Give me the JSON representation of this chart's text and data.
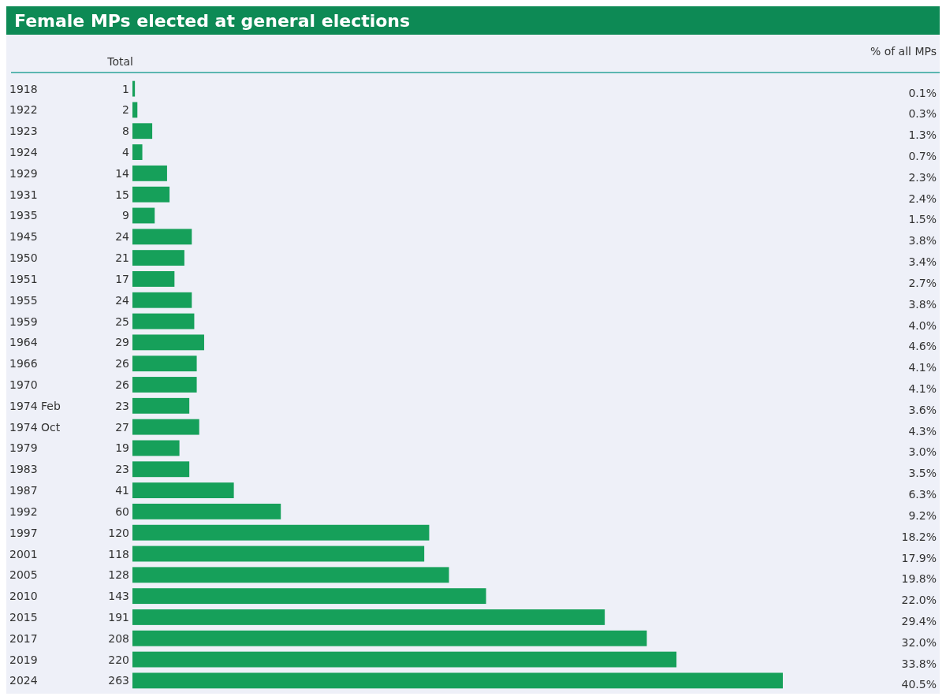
{
  "chart_data": {
    "type": "bar",
    "orientation": "horizontal",
    "title": "Female MPs elected at general elections",
    "categories": [
      "1918",
      "1922",
      "1923",
      "1924",
      "1929",
      "1931",
      "1935",
      "1945",
      "1950",
      "1951",
      "1955",
      "1959",
      "1964",
      "1966",
      "1970",
      "1974 Feb",
      "1974 Oct",
      "1979",
      "1983",
      "1987",
      "1992",
      "1997",
      "2001",
      "2005",
      "2010",
      "2015",
      "2017",
      "2019",
      "2024"
    ],
    "values": [
      1,
      2,
      8,
      4,
      14,
      15,
      9,
      24,
      21,
      17,
      24,
      25,
      29,
      26,
      26,
      23,
      27,
      19,
      23,
      41,
      60,
      120,
      118,
      128,
      143,
      191,
      208,
      220,
      263
    ],
    "color": "#16a05a",
    "data_labels": true,
    "annotations": [
      "Total",
      "% of all MPs",
      "0.1%",
      "0.3%",
      "1.3%",
      "0.7%",
      "2.3%",
      "2.4%",
      "1.5%",
      "3.8%",
      "3.4%",
      "2.7%",
      "3.8%",
      "4.0%",
      "4.6%",
      "4.1%",
      "4.1%",
      "3.6%",
      "4.3%",
      "3.0%",
      "3.5%",
      "6.3%",
      "9.2%",
      "18.2%",
      "17.9%",
      "19.8%",
      "22.0%",
      "29.4%",
      "32.0%",
      "33.8%",
      "40.5%"
    ]
  }
}
